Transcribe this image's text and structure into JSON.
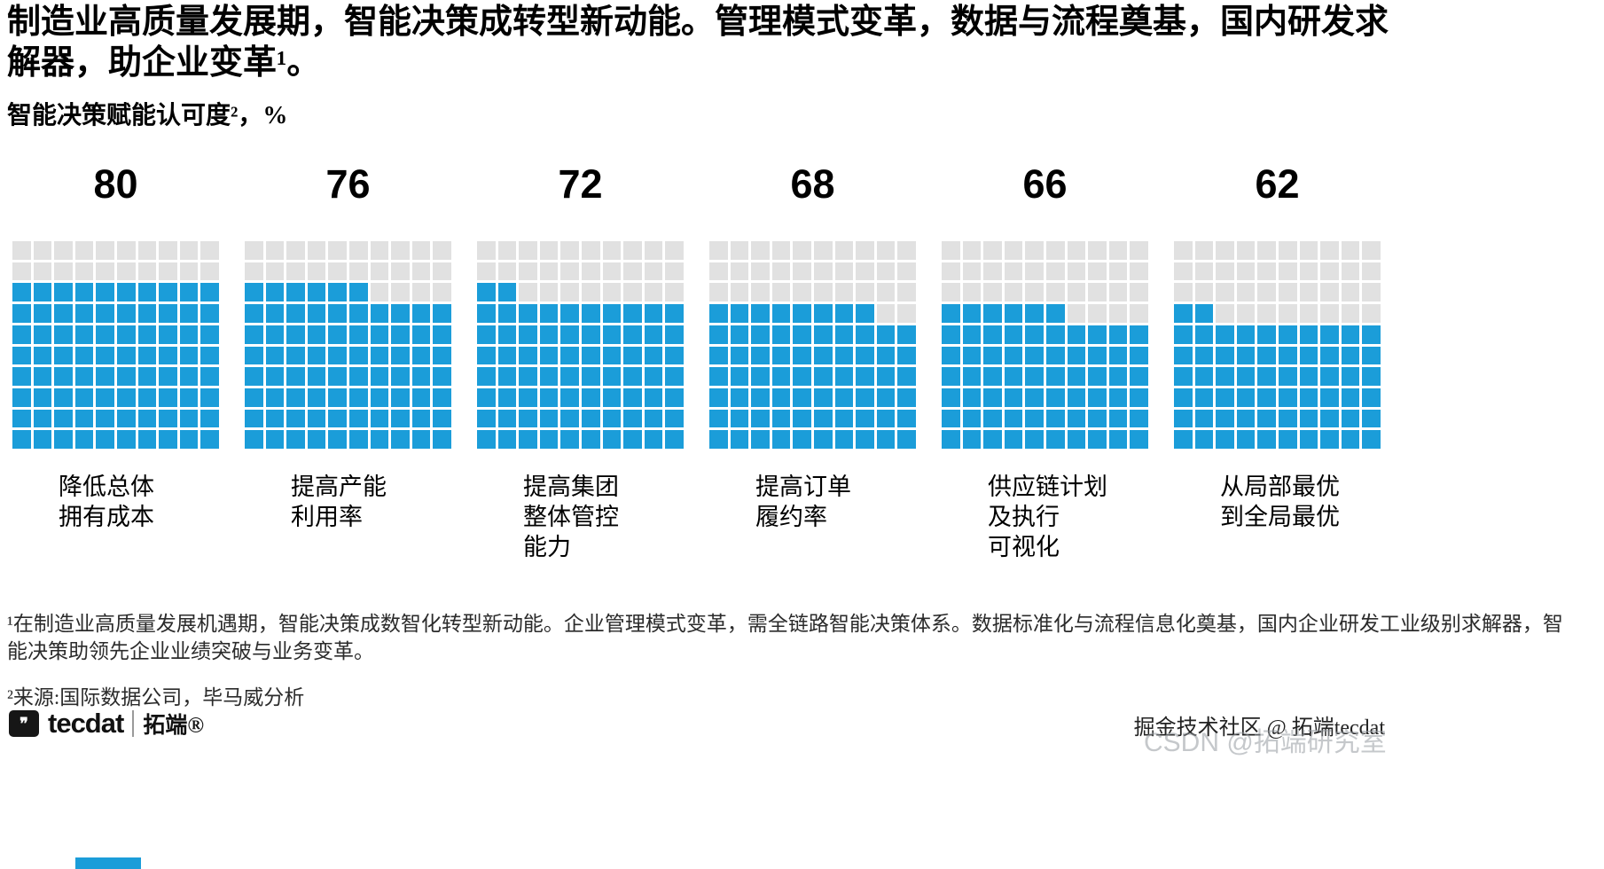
{
  "title": "制造业高质量发展期，智能决策成转型新动能。管理模式变革，数据与流程奠基，国内研发求解器，助企业变革¹。",
  "subtitle": "智能决策赋能认可度²，%",
  "chart_data": {
    "type": "waffle",
    "title": "智能决策赋能认可度，%",
    "unit": "%",
    "grid_rows": 10,
    "grid_cols": 10,
    "fill_color": "#1b9dd9",
    "empty_color": "#e1e1e1",
    "fill_direction": "bottom-up, partial row left-to-right",
    "categories": [
      "降低总体拥有成本",
      "提高产能利用率",
      "提高集团整体管控能力",
      "提高订单履约率",
      "供应链计划及执行可视化",
      "从局部最优到全局最优"
    ],
    "values": [
      80,
      76,
      72,
      68,
      66,
      62
    ],
    "series": [
      {
        "value": 80,
        "label_lines": [
          "降低总体",
          "拥有成本"
        ]
      },
      {
        "value": 76,
        "label_lines": [
          "提高产能",
          "利用率"
        ]
      },
      {
        "value": 72,
        "label_lines": [
          "提高集团",
          "整体管控",
          "能力"
        ]
      },
      {
        "value": 68,
        "label_lines": [
          "提高订单",
          "履约率"
        ]
      },
      {
        "value": 66,
        "label_lines": [
          "供应链计划",
          "及执行",
          "可视化"
        ]
      },
      {
        "value": 62,
        "label_lines": [
          "从局部最优",
          "到全局最优"
        ]
      }
    ]
  },
  "footnotes": [
    "¹在制造业高质量发展机遇期，智能决策成数智化转型新动能。企业管理模式变革，需全链路智能决策体系。数据标准化与流程信息化奠基，国内企业研发工业级别求解器，智能决策助领先企业业绩突破与业务变革。",
    "²来源:国际数据公司，毕马威分析"
  ],
  "footer": {
    "logo_icon": "speech-bubble-icon",
    "logo_icon_glyph": "❞",
    "logo_text": "tecdat",
    "brand": "拓端®",
    "credit": "掘金技术社区 @ 拓端tecdat",
    "watermark": "CSDN @拓端研究室",
    "accent_color": "#1b9dd9"
  }
}
